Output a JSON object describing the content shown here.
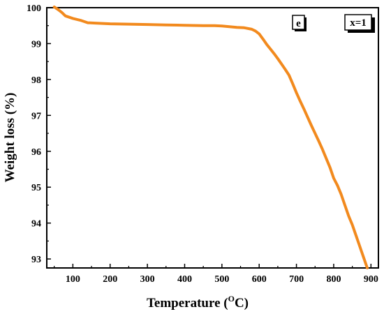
{
  "colors": {
    "line": "#F28A1E",
    "axis": "#000000",
    "background": "#FFFFFF"
  },
  "panel_label": "e",
  "legend_label": "x=1",
  "chart_data": {
    "type": "line",
    "title": "",
    "xlabel_main": "Temperature (",
    "xlabel_sup": "O",
    "xlabel_end": "C)",
    "ylabel": "Weight loss (%)",
    "xlim": [
      30,
      920
    ],
    "ylim": [
      92.75,
      100.0
    ],
    "x_ticks": [
      100,
      200,
      300,
      400,
      500,
      600,
      700,
      800,
      900
    ],
    "y_ticks": [
      93,
      94,
      95,
      96,
      97,
      98,
      99,
      100
    ],
    "grid": false,
    "series": [
      {
        "x": [
          50,
          60,
          70,
          80,
          100,
          120,
          140,
          160,
          200,
          250,
          300,
          350,
          400,
          450,
          480,
          500,
          520,
          540,
          560,
          580,
          590,
          600,
          610,
          620,
          630,
          640,
          650,
          660,
          670,
          680,
          690,
          700,
          710,
          720,
          730,
          740,
          750,
          760,
          770,
          780,
          790,
          800,
          810,
          820,
          830,
          840,
          850,
          860,
          870,
          880,
          890
        ],
        "y": [
          100.02,
          99.95,
          99.87,
          99.77,
          99.7,
          99.65,
          99.58,
          99.57,
          99.55,
          99.54,
          99.53,
          99.52,
          99.51,
          99.5,
          99.5,
          99.49,
          99.47,
          99.45,
          99.44,
          99.4,
          99.35,
          99.27,
          99.13,
          98.98,
          98.85,
          98.72,
          98.58,
          98.43,
          98.28,
          98.12,
          97.88,
          97.63,
          97.4,
          97.18,
          96.95,
          96.72,
          96.5,
          96.28,
          96.05,
          95.8,
          95.55,
          95.25,
          95.05,
          94.8,
          94.5,
          94.2,
          93.95,
          93.65,
          93.35,
          93.05,
          92.75
        ]
      }
    ]
  }
}
